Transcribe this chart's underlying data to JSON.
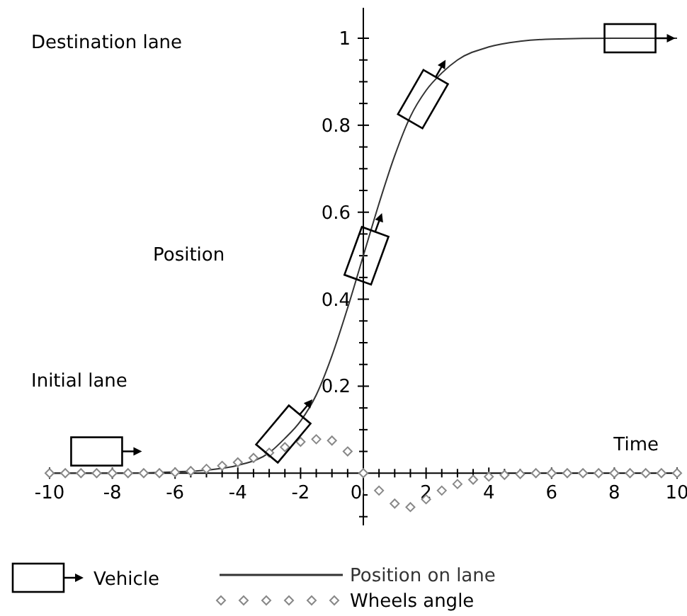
{
  "chart_data": {
    "type": "line",
    "xlabel": "Time",
    "ylabel": "Position",
    "annotations": [
      "Destination lane",
      "Initial lane",
      "Vehicle"
    ],
    "xlim": [
      -10,
      10
    ],
    "ylim": [
      -0.12,
      1.07
    ],
    "xticks": [
      -10,
      {
        "value": -9.5,
        "label": null
      },
      {
        "value": -9,
        "label": null
      },
      {
        "value": -8.5,
        "label": null
      },
      -8,
      {
        "value": -7.5,
        "label": null
      },
      {
        "value": -7,
        "label": null
      },
      {
        "value": -6.5,
        "label": null
      },
      -6,
      {
        "value": -5.5,
        "label": null
      },
      {
        "value": -5,
        "label": null
      },
      {
        "value": -4.5,
        "label": null
      },
      -4,
      {
        "value": -3.5,
        "label": null
      },
      {
        "value": -3,
        "label": null
      },
      {
        "value": -2.5,
        "label": null
      },
      -2,
      {
        "value": -1.5,
        "label": null
      },
      {
        "value": -1,
        "label": null
      },
      {
        "value": -0.5,
        "label": null
      },
      0,
      {
        "value": 0.5,
        "label": null
      },
      {
        "value": 1,
        "label": null
      },
      {
        "value": 1.5,
        "label": null
      },
      2,
      {
        "value": 2.5,
        "label": null
      },
      {
        "value": 3,
        "label": null
      },
      {
        "value": 3.5,
        "label": null
      },
      4,
      {
        "value": 4.5,
        "label": null
      },
      {
        "value": 5,
        "label": null
      },
      {
        "value": 5.5,
        "label": null
      },
      6,
      {
        "value": 6.5,
        "label": null
      },
      {
        "value": 7,
        "label": null
      },
      {
        "value": 7.5,
        "label": null
      },
      8,
      {
        "value": 8.5,
        "label": null
      },
      {
        "value": 9,
        "label": null
      },
      {
        "value": 9.5,
        "label": null
      },
      10
    ],
    "yticks": [
      {
        "value": -0.1,
        "label": null
      },
      {
        "value": -0.05,
        "label": null
      },
      {
        "value": 0.05,
        "label": null
      },
      {
        "value": 0.1,
        "label": null
      },
      {
        "value": 0.15,
        "label": null
      },
      0.2,
      {
        "value": 0.25,
        "label": null
      },
      {
        "value": 0.3,
        "label": null
      },
      {
        "value": 0.35,
        "label": null
      },
      0.4,
      {
        "value": 0.45,
        "label": null
      },
      {
        "value": 0.5,
        "label": null
      },
      {
        "value": 0.55,
        "label": null
      },
      0.6,
      {
        "value": 0.65,
        "label": null
      },
      {
        "value": 0.7,
        "label": null
      },
      {
        "value": 0.75,
        "label": null
      },
      0.8,
      {
        "value": 0.85,
        "label": null
      },
      {
        "value": 0.9,
        "label": null
      },
      {
        "value": 0.95,
        "label": null
      },
      1
    ],
    "legend": "bottom",
    "grid": false,
    "series": [
      {
        "name": "Position on lane",
        "color": "#333333",
        "marker": "none",
        "line_style": "solid",
        "x": [
          -10,
          -8,
          -6,
          -5,
          -4,
          -3,
          -2.5,
          -2,
          -1.5,
          -1,
          -0.5,
          0,
          0.5,
          1,
          1.5,
          2,
          2.5,
          3,
          4,
          5,
          6,
          8,
          10
        ],
        "values": [
          0,
          0,
          0.003,
          0.007,
          0.018,
          0.047,
          0.08,
          0.12,
          0.18,
          0.27,
          0.38,
          0.5,
          0.62,
          0.73,
          0.82,
          0.88,
          0.92,
          0.95,
          0.98,
          0.993,
          0.998,
          1,
          1
        ]
      },
      {
        "name": "Wheels angle",
        "type": "scatter",
        "color": "#888888",
        "marker": "diamond",
        "x": [
          -10,
          -9.5,
          -9,
          -8.5,
          -8,
          -7.5,
          -7,
          -6.5,
          -6,
          -5.5,
          -5,
          -4.5,
          -4,
          -3.5,
          -3,
          -2.5,
          -2,
          -1.5,
          -1,
          -0.5,
          0,
          0.5,
          1,
          1.5,
          2,
          2.5,
          3,
          3.5,
          4,
          4.5,
          5,
          5.5,
          6,
          6.5,
          7,
          7.5,
          8,
          8.5,
          9,
          9.5,
          10
        ],
        "values": [
          0,
          0,
          0,
          0,
          0,
          0,
          0,
          0,
          0.002,
          0.005,
          0.01,
          0.017,
          0.025,
          0.035,
          0.047,
          0.06,
          0.072,
          0.078,
          0.075,
          0.05,
          0,
          -0.04,
          -0.07,
          -0.078,
          -0.06,
          -0.04,
          -0.025,
          -0.015,
          -0.008,
          -0.004,
          -0.002,
          0,
          0,
          0,
          0,
          0,
          0,
          0,
          0,
          0,
          0
        ]
      }
    ]
  }
}
